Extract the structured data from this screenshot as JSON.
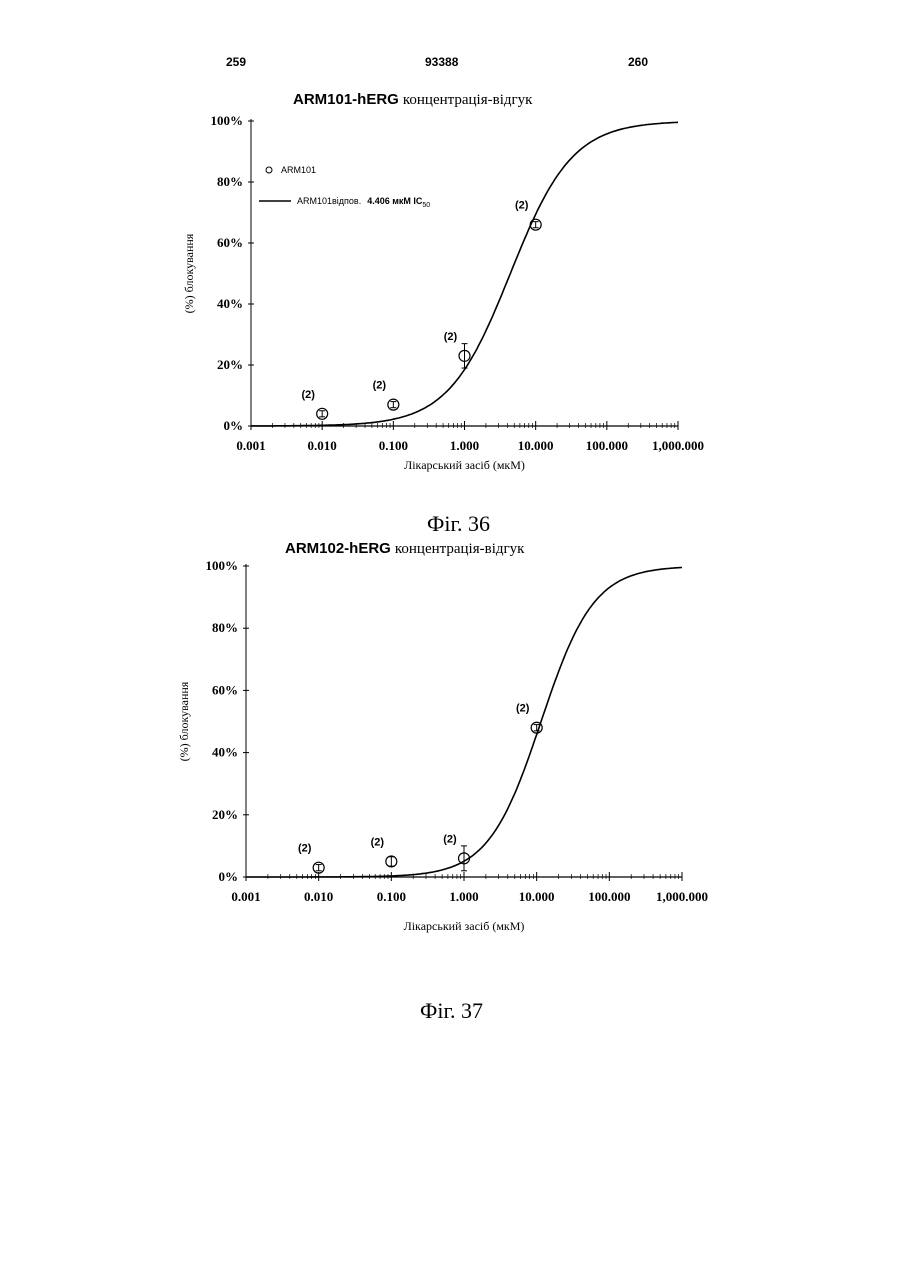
{
  "header": {
    "left_page": "259",
    "patent_number": "93388",
    "right_page": "260"
  },
  "captions": {
    "fig36": "Фіг. 36",
    "fig37": "Фіг. 37"
  },
  "chart_data": [
    {
      "type": "scatter",
      "title_bold": "ARM101-hERG",
      "title_rest": "концентрація-відгук",
      "xlabel": "Лікарський засіб (мкМ)",
      "ylabel": "(%) блокування",
      "xscale": "log",
      "xlim": [
        0.001,
        1000
      ],
      "ylim": [
        0,
        100
      ],
      "x_tick_values": [
        0.001,
        0.01,
        0.1,
        1,
        10,
        100,
        1000
      ],
      "x_tick_labels": [
        "0.001",
        "0.010",
        "0.100",
        "1.000",
        "10.000",
        "100.000",
        "1,000.000"
      ],
      "y_tick_values": [
        0,
        20,
        40,
        60,
        80,
        100
      ],
      "y_tick_labels": [
        "0%",
        "20%",
        "40%",
        "60%",
        "80%",
        "100%"
      ],
      "legend": {
        "points_label": "ARM101",
        "fit_label": "ARM101відпов.",
        "fit_value": "4.406 мкМ IC",
        "fit_subscript": "50",
        "placement": "top-left"
      },
      "fit": {
        "ic50": 4.406,
        "hill": 1.0
      },
      "series": [
        {
          "x": [
            0.01,
            0.1,
            1,
            10
          ],
          "y": [
            4,
            7,
            23,
            66
          ],
          "err": [
            1,
            1,
            4,
            1
          ],
          "n_labels": [
            "(2)",
            "(2)",
            "(2)",
            "(2)"
          ]
        }
      ]
    },
    {
      "type": "scatter",
      "title_bold": "ARM102-hERG",
      "title_rest": "концентрація-відгук",
      "xlabel": "Лікарський засіб (мкМ)",
      "ylabel": "(%) блокування",
      "xscale": "log",
      "xlim": [
        0.001,
        1000
      ],
      "ylim": [
        0,
        100
      ],
      "x_tick_values": [
        0.001,
        0.01,
        0.1,
        1,
        10,
        100,
        1000
      ],
      "x_tick_labels": [
        "0.001",
        "0.010",
        "0.100",
        "1.000",
        "10.000",
        "100.000",
        "1,000.000"
      ],
      "y_tick_values": [
        0,
        20,
        40,
        60,
        80,
        100
      ],
      "y_tick_labels": [
        "0%",
        "20%",
        "40%",
        "60%",
        "80%",
        "100%"
      ],
      "fit": {
        "ic50": 11.5,
        "hill": 1.2
      },
      "series": [
        {
          "x": [
            0.01,
            0.1,
            1,
            10
          ],
          "y": [
            3,
            5,
            6,
            48
          ],
          "err": [
            1,
            1.5,
            4,
            1
          ],
          "n_labels": [
            "(2)",
            "(2)",
            "(2)",
            "(2)"
          ]
        }
      ]
    }
  ]
}
